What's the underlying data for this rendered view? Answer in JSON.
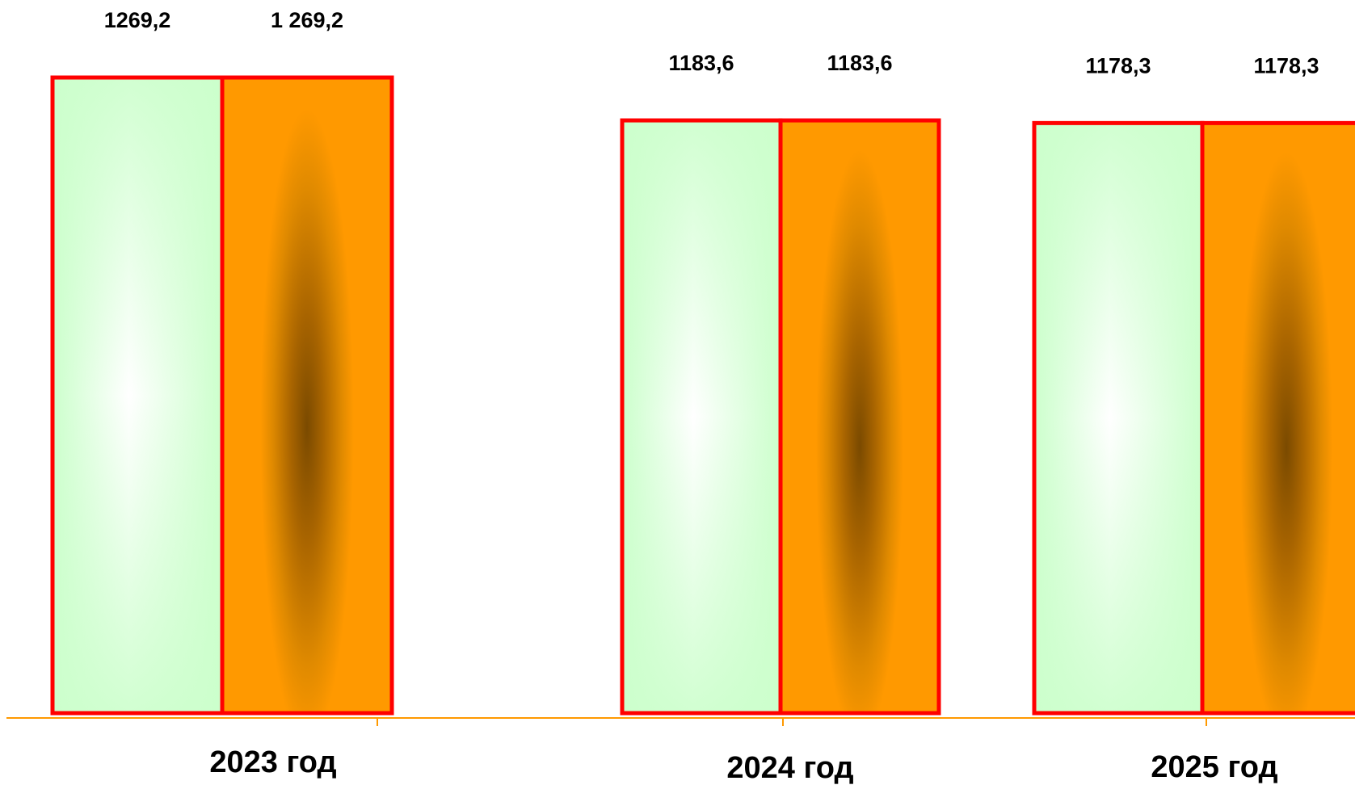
{
  "chart_data": {
    "type": "bar",
    "categories": [
      "2023 год",
      "2024 год",
      "2025 год"
    ],
    "series": [
      {
        "values": [
          1269.2,
          1183.6,
          1178.3
        ],
        "labels": [
          "1269,2",
          "1183,6",
          "1178,3"
        ],
        "color": "#ccffcc"
      },
      {
        "values": [
          1269.2,
          1183.6,
          1178.3
        ],
        "labels": [
          "1 269,2",
          "1183,6",
          "1178,3"
        ],
        "color": "#ff9900"
      }
    ],
    "bar_outline_color": "#ff0000",
    "axis_color": "#ff9900",
    "grid": false,
    "legend": "none"
  }
}
